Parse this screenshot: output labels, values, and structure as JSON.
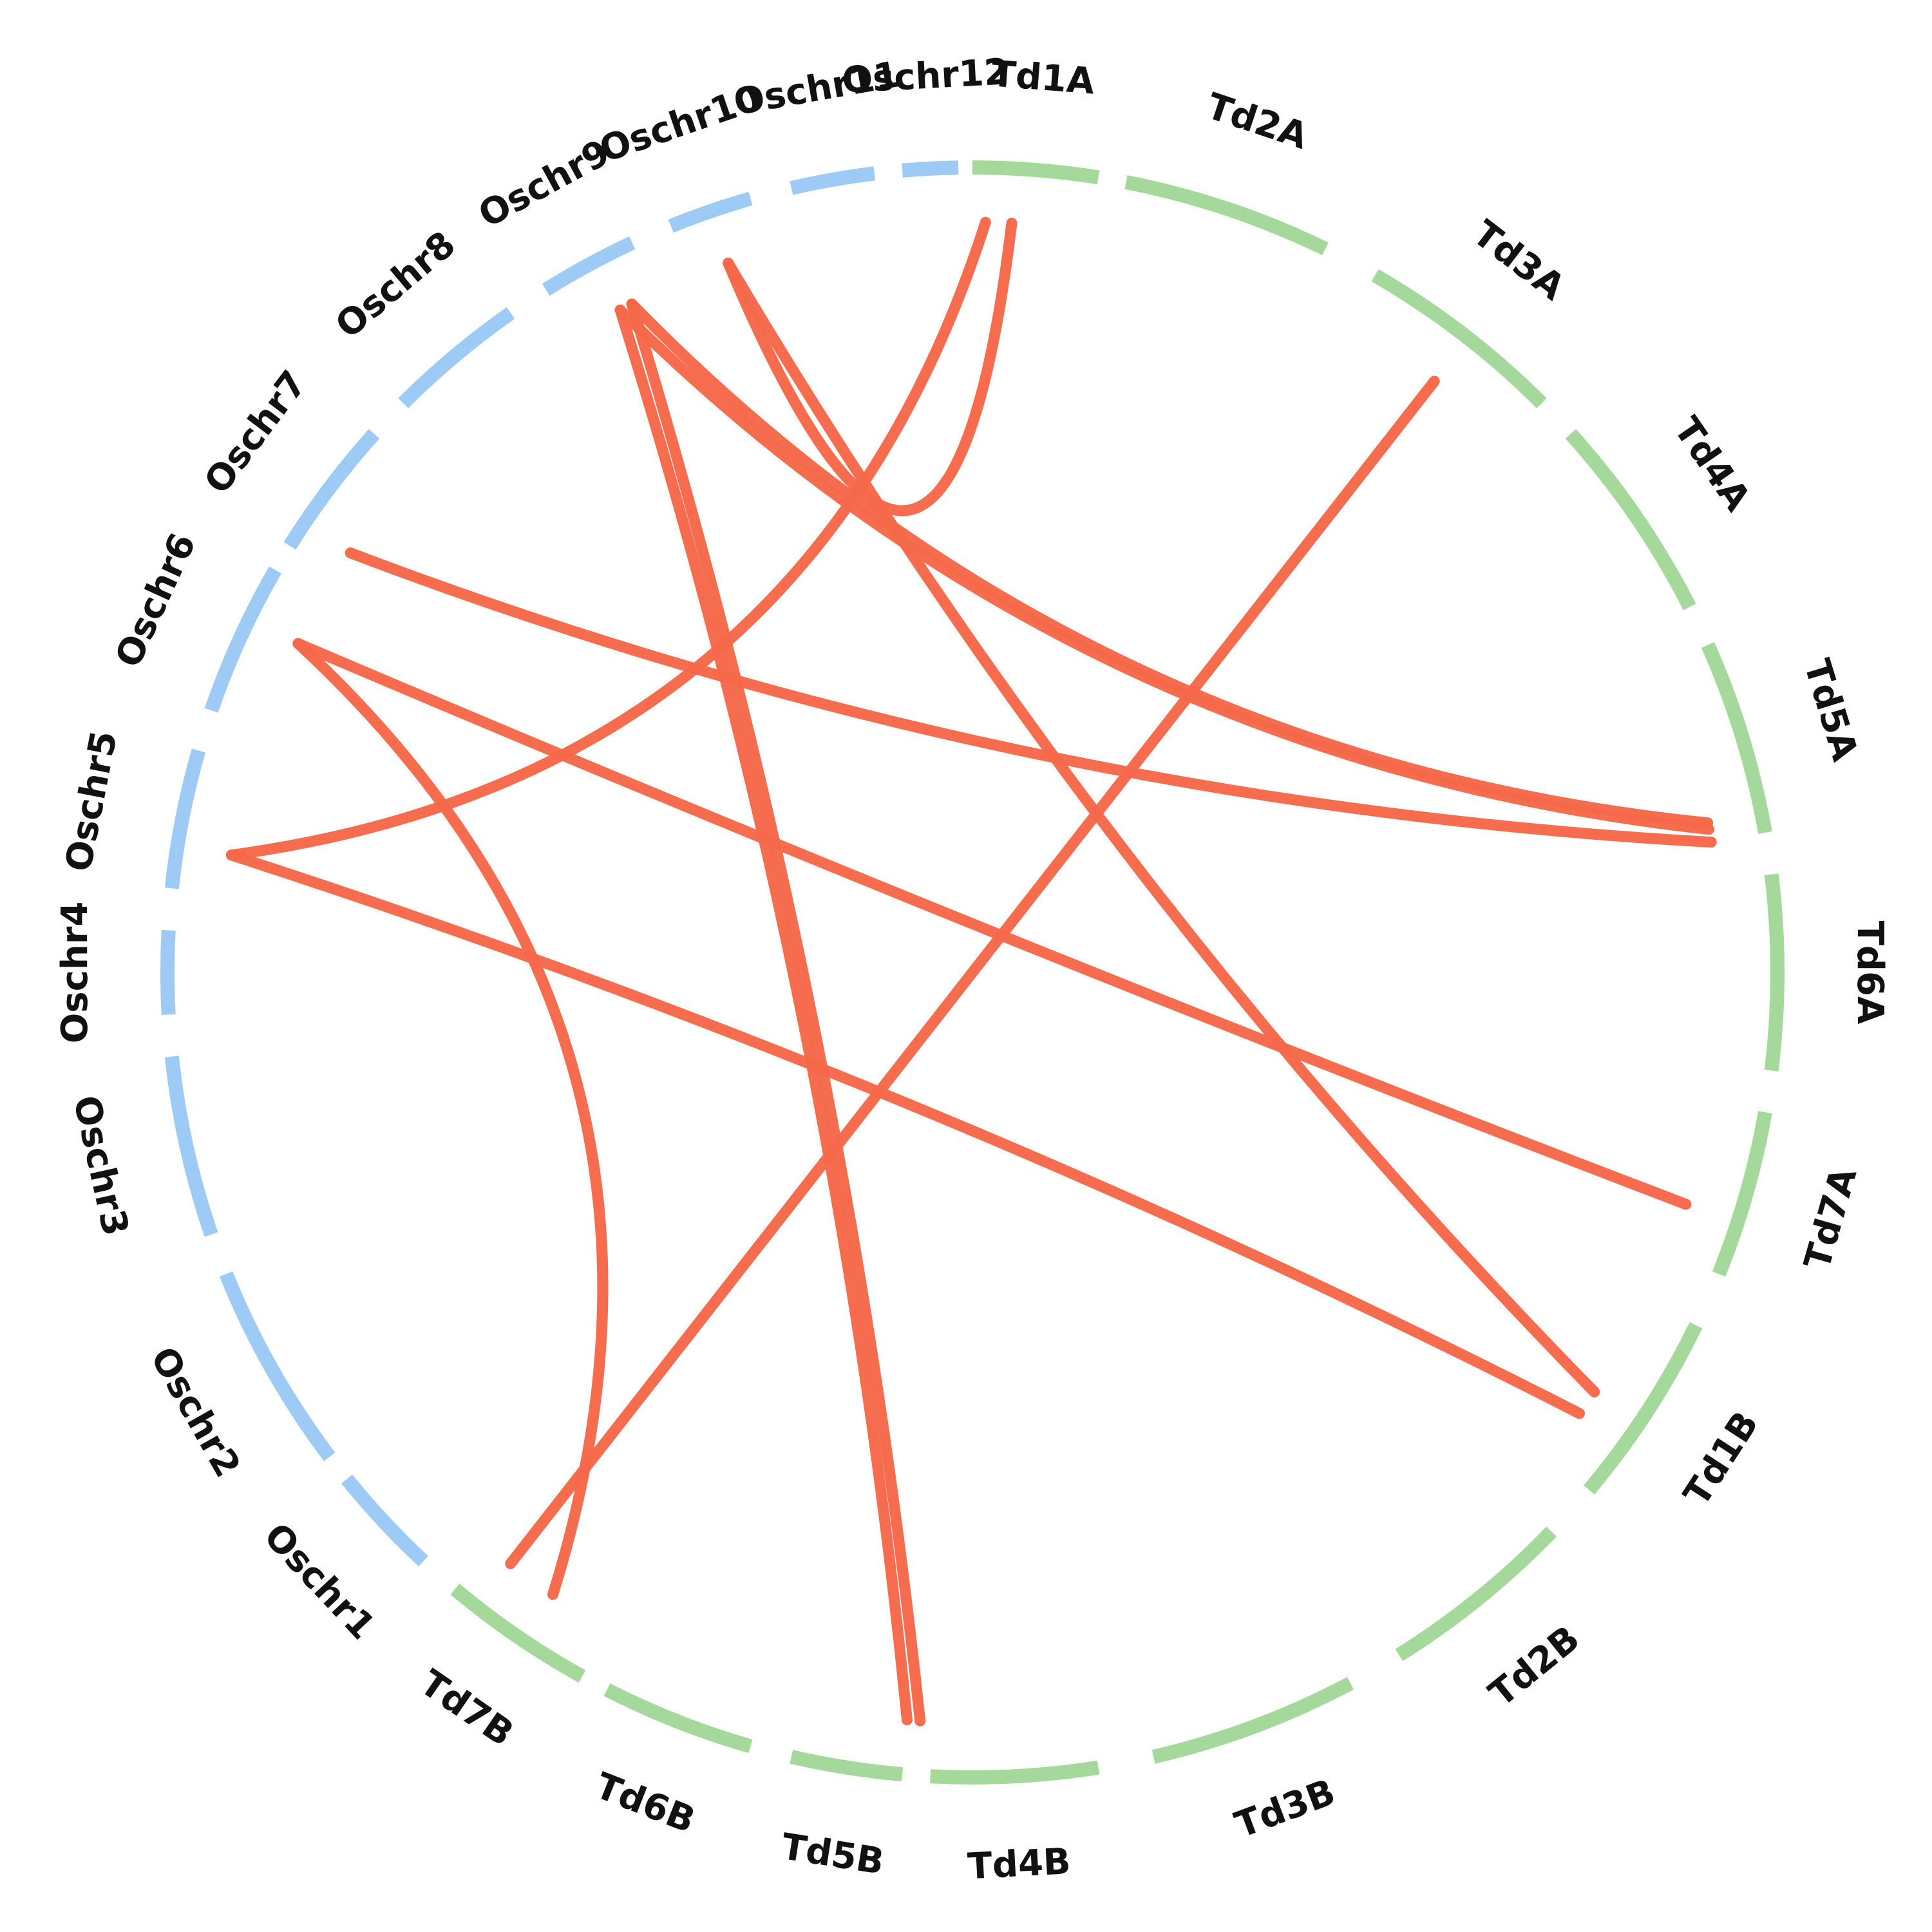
{
  "colors": {
    "rice": "#9dcbf6",
    "wheat": "#a5d99b",
    "link": "#f5694a",
    "text": "#111111"
  },
  "rice_chromosomes": [
    "Oschr1",
    "Oschr2",
    "Oschr3",
    "Oschr4",
    "Oschr5",
    "Oschr6",
    "Oschr7",
    "Oschr8",
    "Oschr9",
    "Oschr10",
    "Oschr11",
    "Oschr12"
  ],
  "wheat_chromosomes": [
    "Td1A",
    "Td2A",
    "Td3A",
    "Td4A",
    "Td5A",
    "Td6A",
    "Td7A",
    "Td1B",
    "Td2B",
    "Td3B",
    "Td4B",
    "Td5B",
    "Td6B",
    "Td7B"
  ],
  "links": [
    {
      "from": "Oschr5",
      "to": "Td1A"
    },
    {
      "from": "Oschr10",
      "to": "Td1A"
    },
    {
      "from": "Oschr10",
      "to": "Td1B"
    },
    {
      "from": "Oschr9",
      "to": "Td5A"
    },
    {
      "from": "Oschr9",
      "to": "Td5A"
    },
    {
      "from": "Oschr9",
      "to": "Td5B"
    },
    {
      "from": "Oschr9",
      "to": "Td5B"
    },
    {
      "from": "Oschr7",
      "to": "Td5A"
    },
    {
      "from": "Oschr6",
      "to": "Td7A"
    },
    {
      "from": "Oschr6",
      "to": "Td7B"
    },
    {
      "from": "Oschr5",
      "to": "Td1B"
    },
    {
      "from": "Td3A",
      "to": "Td7B"
    }
  ]
}
